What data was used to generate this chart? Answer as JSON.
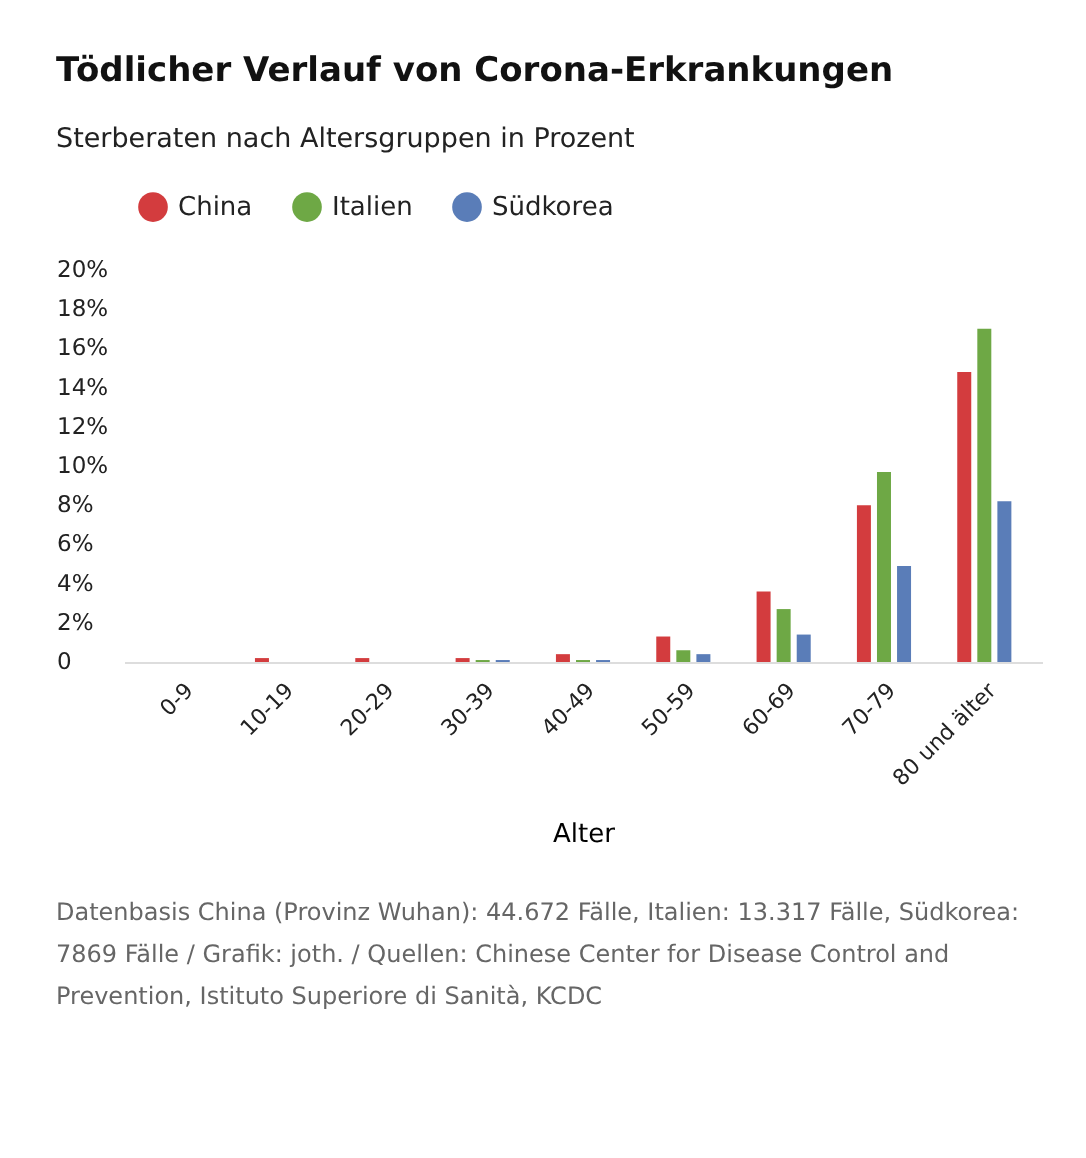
{
  "chart_data": {
    "type": "bar",
    "title": "Tödlicher Verlauf von Corona-Erkrankungen",
    "subtitle": "Sterberaten nach Altersgruppen in Prozent",
    "xlabel": "Alter",
    "categories": [
      "0-9",
      "10-19",
      "20-29",
      "30-39",
      "40-49",
      "50-59",
      "60-69",
      "70-79",
      "80 und älter"
    ],
    "series": [
      {
        "name": "China",
        "color": "#d33c3e",
        "values": [
          0,
          0.2,
          0.2,
          0.2,
          0.4,
          1.3,
          3.6,
          8.0,
          14.8
        ]
      },
      {
        "name": "Italien",
        "color": "#6ea845",
        "values": [
          0,
          0,
          0,
          0.1,
          0.1,
          0.6,
          2.7,
          9.7,
          17.0
        ]
      },
      {
        "name": "Südkorea",
        "color": "#5a7db8",
        "values": [
          0,
          0,
          0,
          0.1,
          0.1,
          0.4,
          1.4,
          4.9,
          8.2
        ]
      }
    ],
    "ylim": [
      0,
      20
    ],
    "yticks": [
      0,
      {
        "value": 2,
        "label": "2%"
      },
      {
        "value": 4,
        "label": "4%"
      },
      {
        "value": 6,
        "label": "6%"
      },
      {
        "value": 8,
        "label": "8%"
      },
      {
        "value": 10,
        "label": "10%"
      },
      {
        "value": 12,
        "label": "12%"
      },
      {
        "value": 14,
        "label": "14%"
      },
      {
        "value": 16,
        "label": "16%"
      },
      {
        "value": 18,
        "label": "18%"
      },
      {
        "value": 20,
        "label": "20%"
      }
    ],
    "grid": false,
    "legend": "top",
    "annotations": [
      "Datenbasis China (Provinz Wuhan): 44.672 Fälle, Italien: 13.317 Fälle, Südkorea: 7869 Fälle / Grafik: joth. / Quellen: Chinese Center for Disease Control and Prevention, Istituto Superiore di Sanità, KCDC"
    ]
  }
}
